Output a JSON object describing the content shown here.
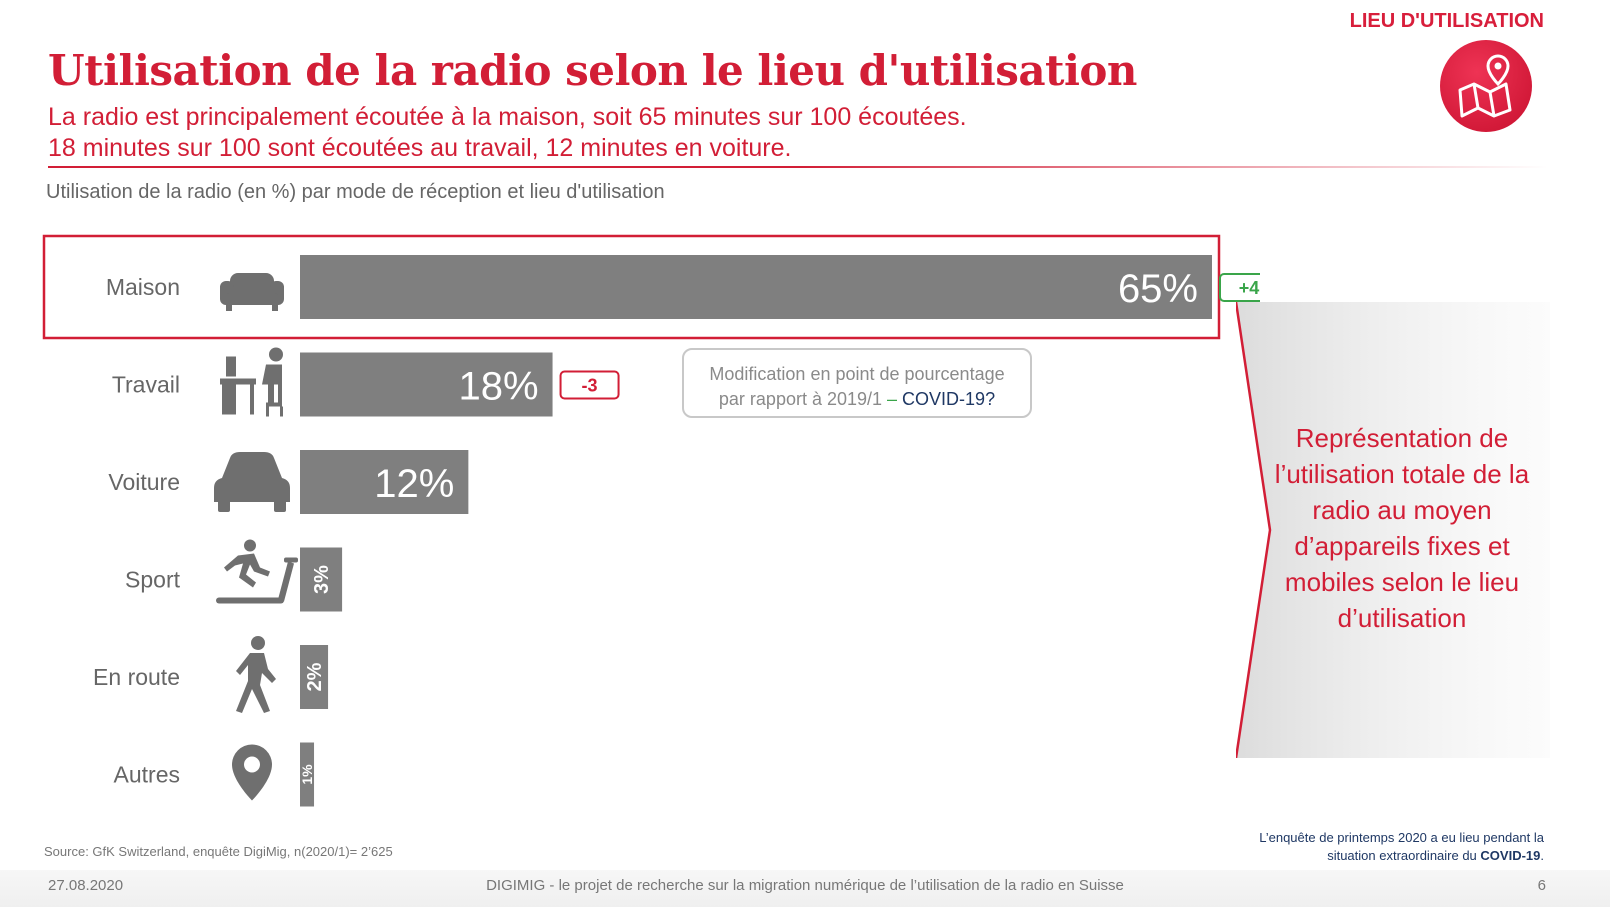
{
  "header": {
    "corner_label": "LIEU D'UTILISATION",
    "title": "Utilisation de la radio selon le lieu d'utilisation",
    "subtitle_1": "La radio est principalement écoutée à la maison, soit 65 minutes sur 100 écoutées.",
    "subtitle_2": "18 minutes sur 100 sont écoutées au travail, 12 minutes en voiture.",
    "badge_icon": "map-pin-icon"
  },
  "chart_caption": "Utilisation de la radio (en %) par mode de réception et lieu d'utilisation",
  "chart_data": {
    "type": "bar",
    "orientation": "horizontal",
    "title": "",
    "xlabel": "",
    "ylabel": "",
    "xlim": [
      0,
      65
    ],
    "categories": [
      "Maison",
      "Travail",
      "Voiture",
      "Sport",
      "En route",
      "Autres"
    ],
    "values": [
      65,
      18,
      12,
      3,
      2,
      1
    ],
    "value_labels": [
      "65%",
      "18%",
      "12%",
      "3%",
      "2%",
      "1%"
    ],
    "changes": [
      "+4",
      "-3",
      null,
      null,
      null,
      null
    ],
    "icons": [
      "armchair-icon",
      "desk-worker-icon",
      "car-icon",
      "treadmill-runner-icon",
      "walking-person-icon",
      "location-pin-icon"
    ],
    "highlighted_category": "Maison",
    "bar_color": "#7f7f7f",
    "highlight_color": "#d21e36",
    "change_positive_color": "#3aa54a",
    "change_negative_color": "#d21e36"
  },
  "legend_box": {
    "line_1": "Modification en point de pourcentage",
    "line_2_prefix": "par rapport à 2019/1 ",
    "line_2_dash": "–",
    "line_2_covid": " COVID-19?"
  },
  "side_note": "Représentation de l’utilisation totale de la radio au moyen d’appareils fixes et mobiles selon le lieu d’utilisation",
  "source": "Source: GfK Switzerland, enquête DigiMig, n(2020/1)= 2’625",
  "survey_note": {
    "line_1": "L’enquête de printemps 2020 a eu lieu pendant la",
    "line_2_prefix": "situation extraordinaire du ",
    "line_2_bold": "COVID-19",
    "line_2_suffix": "."
  },
  "footer": {
    "date": "27.08.2020",
    "center": "DIGIMIG - le projet de recherche sur la migration numérique de l’utilisation de la radio en Suisse",
    "page": "6"
  },
  "colors": {
    "accent": "#d21e36",
    "navy": "#1f3864"
  }
}
